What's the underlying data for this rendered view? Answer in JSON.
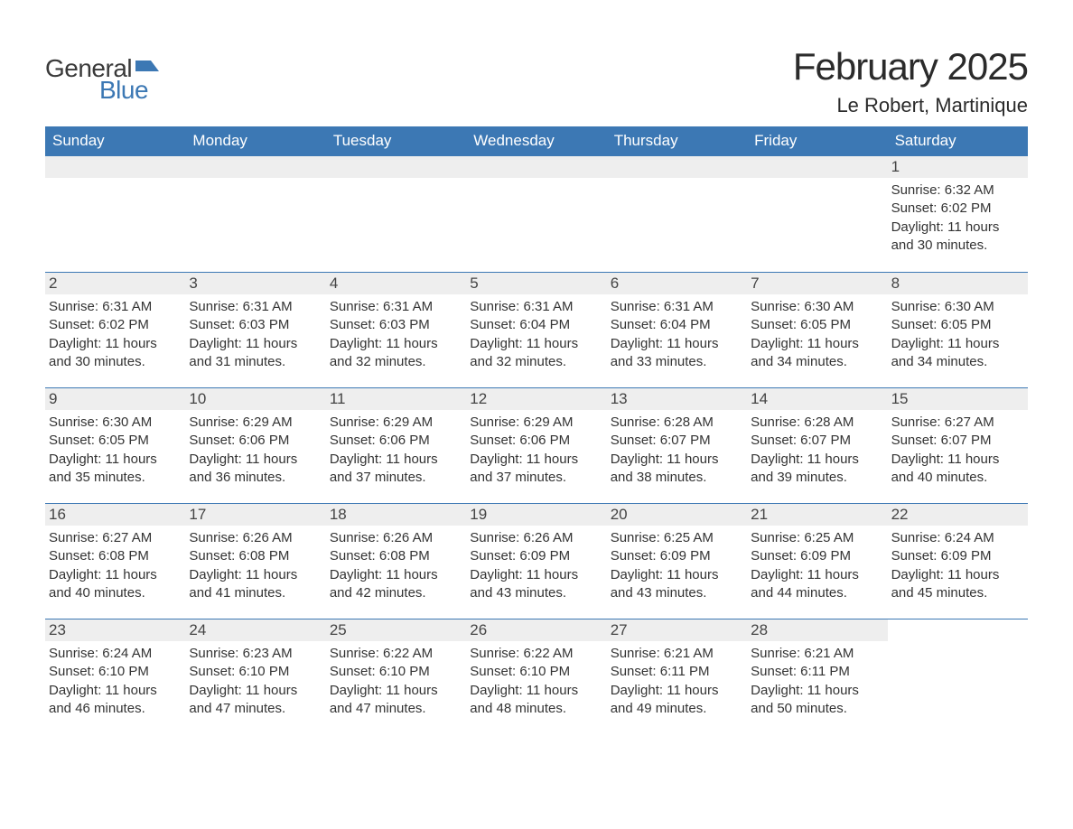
{
  "logo": {
    "text_general": "General",
    "text_blue": "Blue",
    "flag_color": "#3C78B4",
    "general_color": "#3a3a3a"
  },
  "title": "February 2025",
  "location": "Le Robert, Martinique",
  "colors": {
    "header_bg": "#3C78B4",
    "header_text": "#ffffff",
    "daynum_bg": "#eeeeee",
    "row_border": "#3C78B4",
    "body_text": "#333333",
    "background": "#ffffff"
  },
  "weekdays": [
    "Sunday",
    "Monday",
    "Tuesday",
    "Wednesday",
    "Thursday",
    "Friday",
    "Saturday"
  ],
  "weeks": [
    [
      {
        "empty": true
      },
      {
        "empty": true
      },
      {
        "empty": true
      },
      {
        "empty": true
      },
      {
        "empty": true
      },
      {
        "empty": true
      },
      {
        "num": "1",
        "sunrise": "Sunrise: 6:32 AM",
        "sunset": "Sunset: 6:02 PM",
        "daylight": "Daylight: 11 hours and 30 minutes."
      }
    ],
    [
      {
        "num": "2",
        "sunrise": "Sunrise: 6:31 AM",
        "sunset": "Sunset: 6:02 PM",
        "daylight": "Daylight: 11 hours and 30 minutes."
      },
      {
        "num": "3",
        "sunrise": "Sunrise: 6:31 AM",
        "sunset": "Sunset: 6:03 PM",
        "daylight": "Daylight: 11 hours and 31 minutes."
      },
      {
        "num": "4",
        "sunrise": "Sunrise: 6:31 AM",
        "sunset": "Sunset: 6:03 PM",
        "daylight": "Daylight: 11 hours and 32 minutes."
      },
      {
        "num": "5",
        "sunrise": "Sunrise: 6:31 AM",
        "sunset": "Sunset: 6:04 PM",
        "daylight": "Daylight: 11 hours and 32 minutes."
      },
      {
        "num": "6",
        "sunrise": "Sunrise: 6:31 AM",
        "sunset": "Sunset: 6:04 PM",
        "daylight": "Daylight: 11 hours and 33 minutes."
      },
      {
        "num": "7",
        "sunrise": "Sunrise: 6:30 AM",
        "sunset": "Sunset: 6:05 PM",
        "daylight": "Daylight: 11 hours and 34 minutes."
      },
      {
        "num": "8",
        "sunrise": "Sunrise: 6:30 AM",
        "sunset": "Sunset: 6:05 PM",
        "daylight": "Daylight: 11 hours and 34 minutes."
      }
    ],
    [
      {
        "num": "9",
        "sunrise": "Sunrise: 6:30 AM",
        "sunset": "Sunset: 6:05 PM",
        "daylight": "Daylight: 11 hours and 35 minutes."
      },
      {
        "num": "10",
        "sunrise": "Sunrise: 6:29 AM",
        "sunset": "Sunset: 6:06 PM",
        "daylight": "Daylight: 11 hours and 36 minutes."
      },
      {
        "num": "11",
        "sunrise": "Sunrise: 6:29 AM",
        "sunset": "Sunset: 6:06 PM",
        "daylight": "Daylight: 11 hours and 37 minutes."
      },
      {
        "num": "12",
        "sunrise": "Sunrise: 6:29 AM",
        "sunset": "Sunset: 6:06 PM",
        "daylight": "Daylight: 11 hours and 37 minutes."
      },
      {
        "num": "13",
        "sunrise": "Sunrise: 6:28 AM",
        "sunset": "Sunset: 6:07 PM",
        "daylight": "Daylight: 11 hours and 38 minutes."
      },
      {
        "num": "14",
        "sunrise": "Sunrise: 6:28 AM",
        "sunset": "Sunset: 6:07 PM",
        "daylight": "Daylight: 11 hours and 39 minutes."
      },
      {
        "num": "15",
        "sunrise": "Sunrise: 6:27 AM",
        "sunset": "Sunset: 6:07 PM",
        "daylight": "Daylight: 11 hours and 40 minutes."
      }
    ],
    [
      {
        "num": "16",
        "sunrise": "Sunrise: 6:27 AM",
        "sunset": "Sunset: 6:08 PM",
        "daylight": "Daylight: 11 hours and 40 minutes."
      },
      {
        "num": "17",
        "sunrise": "Sunrise: 6:26 AM",
        "sunset": "Sunset: 6:08 PM",
        "daylight": "Daylight: 11 hours and 41 minutes."
      },
      {
        "num": "18",
        "sunrise": "Sunrise: 6:26 AM",
        "sunset": "Sunset: 6:08 PM",
        "daylight": "Daylight: 11 hours and 42 minutes."
      },
      {
        "num": "19",
        "sunrise": "Sunrise: 6:26 AM",
        "sunset": "Sunset: 6:09 PM",
        "daylight": "Daylight: 11 hours and 43 minutes."
      },
      {
        "num": "20",
        "sunrise": "Sunrise: 6:25 AM",
        "sunset": "Sunset: 6:09 PM",
        "daylight": "Daylight: 11 hours and 43 minutes."
      },
      {
        "num": "21",
        "sunrise": "Sunrise: 6:25 AM",
        "sunset": "Sunset: 6:09 PM",
        "daylight": "Daylight: 11 hours and 44 minutes."
      },
      {
        "num": "22",
        "sunrise": "Sunrise: 6:24 AM",
        "sunset": "Sunset: 6:09 PM",
        "daylight": "Daylight: 11 hours and 45 minutes."
      }
    ],
    [
      {
        "num": "23",
        "sunrise": "Sunrise: 6:24 AM",
        "sunset": "Sunset: 6:10 PM",
        "daylight": "Daylight: 11 hours and 46 minutes."
      },
      {
        "num": "24",
        "sunrise": "Sunrise: 6:23 AM",
        "sunset": "Sunset: 6:10 PM",
        "daylight": "Daylight: 11 hours and 47 minutes."
      },
      {
        "num": "25",
        "sunrise": "Sunrise: 6:22 AM",
        "sunset": "Sunset: 6:10 PM",
        "daylight": "Daylight: 11 hours and 47 minutes."
      },
      {
        "num": "26",
        "sunrise": "Sunrise: 6:22 AM",
        "sunset": "Sunset: 6:10 PM",
        "daylight": "Daylight: 11 hours and 48 minutes."
      },
      {
        "num": "27",
        "sunrise": "Sunrise: 6:21 AM",
        "sunset": "Sunset: 6:11 PM",
        "daylight": "Daylight: 11 hours and 49 minutes."
      },
      {
        "num": "28",
        "sunrise": "Sunrise: 6:21 AM",
        "sunset": "Sunset: 6:11 PM",
        "daylight": "Daylight: 11 hours and 50 minutes."
      },
      {
        "empty": true,
        "no_bar": true
      }
    ]
  ]
}
